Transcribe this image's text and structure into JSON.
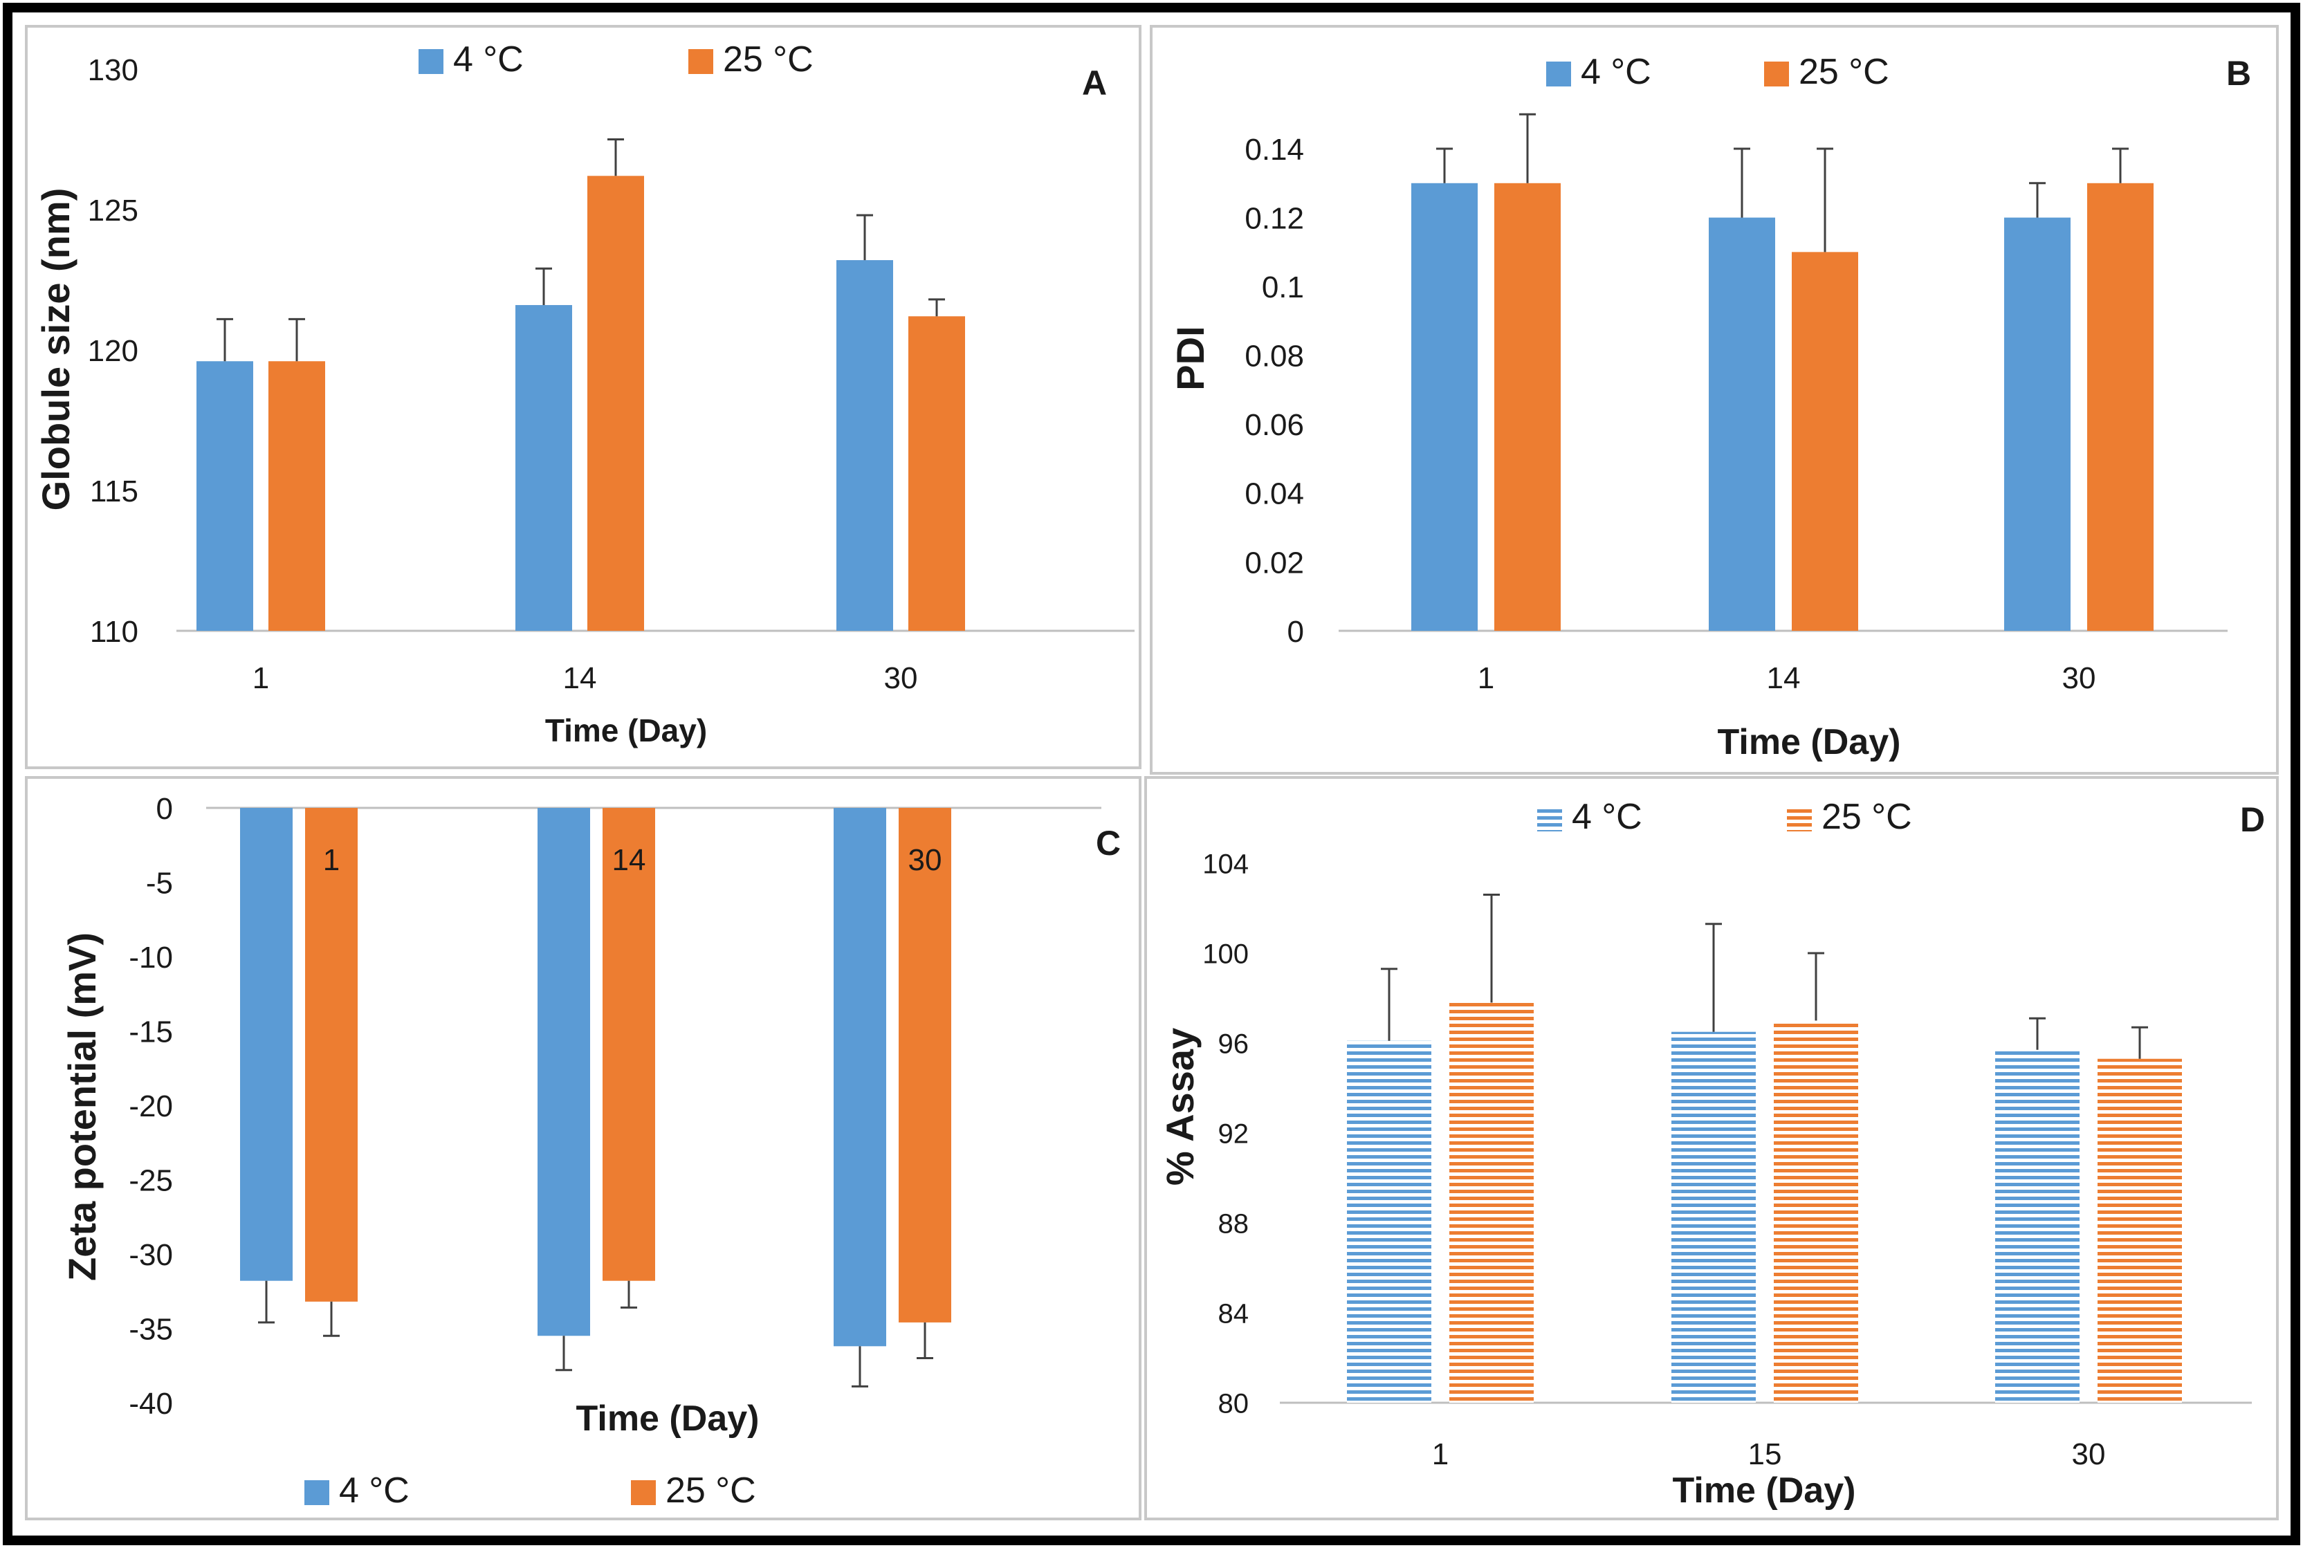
{
  "colors": {
    "series_4c": "#5b9bd5",
    "series_25c": "#ed7d31",
    "axis": "#bfbfbf",
    "text": "#1a1a1a",
    "errbar": "#404040",
    "frame": "#000000"
  },
  "chart_data": [
    {
      "panel": "A",
      "type": "bar",
      "panel_letter": "A",
      "xlabel": "Time (Day)",
      "ylabel": "Globule size (nm)",
      "categories": [
        "1",
        "14",
        "30"
      ],
      "ylim": [
        110,
        130
      ],
      "yticks": [
        {
          "v": 110,
          "label": "110"
        },
        {
          "v": 115,
          "label": "115"
        },
        {
          "v": 120,
          "label": "120"
        },
        {
          "v": 125,
          "label": "125"
        },
        {
          "v": 130,
          "label": "130"
        }
      ],
      "legend": [
        "4 °C",
        "25 °C"
      ],
      "series": [
        {
          "name": "4 °C",
          "values": [
            119.6,
            121.6,
            123.2
          ],
          "errors": [
            1.5,
            1.3,
            1.6
          ]
        },
        {
          "name": "25 °C",
          "values": [
            119.6,
            126.2,
            121.2
          ],
          "errors": [
            1.5,
            1.3,
            0.6
          ]
        }
      ]
    },
    {
      "panel": "B",
      "type": "bar",
      "panel_letter": "B",
      "xlabel": "Time (Day)",
      "ylabel": "PDI",
      "categories": [
        "1",
        "14",
        "30"
      ],
      "ylim": [
        0,
        0.14
      ],
      "yticks": [
        {
          "v": 0,
          "label": "0"
        },
        {
          "v": 0.02,
          "label": "0.02"
        },
        {
          "v": 0.04,
          "label": "0.04"
        },
        {
          "v": 0.06,
          "label": "0.06"
        },
        {
          "v": 0.08,
          "label": "0.08"
        },
        {
          "v": 0.1,
          "label": "0.1"
        },
        {
          "v": 0.12,
          "label": "0.12"
        },
        {
          "v": 0.14,
          "label": "0.14"
        }
      ],
      "legend": [
        "4 °C",
        "25 °C"
      ],
      "series": [
        {
          "name": "4 °C",
          "values": [
            0.13,
            0.12,
            0.12
          ],
          "errors": [
            0.01,
            0.02,
            0.01
          ]
        },
        {
          "name": "25 °C",
          "values": [
            0.13,
            0.11,
            0.13
          ],
          "errors": [
            0.02,
            0.03,
            0.01
          ]
        }
      ]
    },
    {
      "panel": "C",
      "type": "bar",
      "panel_letter": "C",
      "xlabel": "Time (Day)",
      "ylabel": "Zeta potential (mV)",
      "categories": [
        "1",
        "14",
        "30"
      ],
      "ylim": [
        -40,
        0
      ],
      "yticks": [
        {
          "v": 0,
          "label": "0"
        },
        {
          "v": -5,
          "label": "-5"
        },
        {
          "v": -10,
          "label": "-10"
        },
        {
          "v": -15,
          "label": "-15"
        },
        {
          "v": -20,
          "label": "-20"
        },
        {
          "v": -25,
          "label": "-25"
        },
        {
          "v": -30,
          "label": "-30"
        },
        {
          "v": -35,
          "label": "-35"
        },
        {
          "v": -40,
          "label": "-40"
        }
      ],
      "legend": [
        "4 °C",
        "25 °C"
      ],
      "series": [
        {
          "name": "4 °C",
          "values": [
            -31.8,
            -35.5,
            -36.2
          ],
          "errors": [
            2.8,
            2.3,
            2.7
          ]
        },
        {
          "name": "25 °C",
          "values": [
            -33.2,
            -31.8,
            -34.6
          ],
          "errors": [
            2.3,
            1.8,
            2.4
          ]
        }
      ]
    },
    {
      "panel": "D",
      "type": "bar",
      "panel_letter": "D",
      "xlabel": "Time (Day)",
      "ylabel": "% Assay",
      "categories": [
        "1",
        "15",
        "30"
      ],
      "ylim": [
        80,
        104
      ],
      "yticks": [
        {
          "v": 80,
          "label": "80"
        },
        {
          "v": 84,
          "label": "84"
        },
        {
          "v": 88,
          "label": "88"
        },
        {
          "v": 92,
          "label": "92"
        },
        {
          "v": 96,
          "label": "96"
        },
        {
          "v": 100,
          "label": "100"
        },
        {
          "v": 104,
          "label": "104"
        }
      ],
      "legend": [
        "4 °C",
        "25 °C"
      ],
      "series": [
        {
          "name": "4 °C",
          "values": [
            96.1,
            96.5,
            95.7
          ],
          "errors": [
            3.2,
            4.8,
            1.4
          ]
        },
        {
          "name": "25 °C",
          "values": [
            97.8,
            97.0,
            95.3
          ],
          "errors": [
            4.8,
            3.0,
            1.4
          ]
        }
      ]
    }
  ]
}
